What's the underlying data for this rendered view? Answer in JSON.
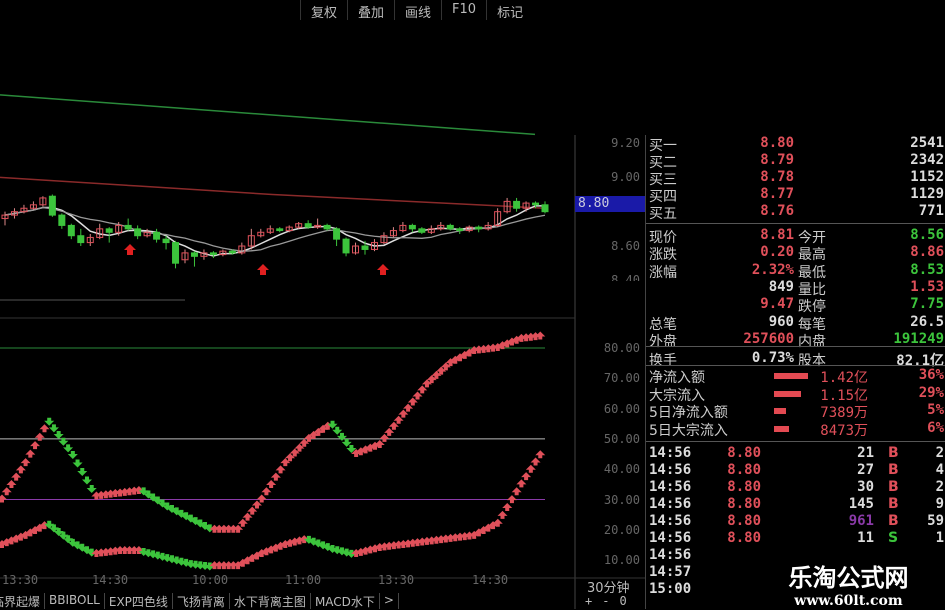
{
  "toolbar": {
    "items": [
      "复权",
      "叠加",
      "画线",
      "F10",
      "标记"
    ]
  },
  "price_axis": {
    "labels": [
      "9.20",
      "9.00",
      "8.60",
      "8.40"
    ],
    "current": "8.80"
  },
  "indicator_axis": {
    "labels": [
      "80.00",
      "70.00",
      "60.00",
      "50.00",
      "40.00",
      "30.00",
      "20.00",
      "10.00"
    ]
  },
  "time_axis": {
    "labels": [
      "13:30",
      "14:30",
      "10:00",
      "11:00",
      "13:30",
      "14:30"
    ],
    "period": "30分钟",
    "zoom_buttons": [
      "+",
      "-",
      "0"
    ]
  },
  "indicator_tabs": [
    "临界起爆",
    "BBIBOLL",
    "EXP四色线",
    "飞扬背离",
    "水下背离主图",
    "MACD水下",
    ">"
  ],
  "colors": {
    "up": "#e0505a",
    "down": "#3cc43c",
    "ma_white": "#dddddd",
    "ma_red": "#8a2a2a",
    "ma_green": "#2a8a3a",
    "highlight": "#1a1aa8"
  },
  "quote": {
    "bids": [
      {
        "label": "买一",
        "price": "8.80",
        "vol": "2541"
      },
      {
        "label": "买二",
        "price": "8.79",
        "vol": "2342"
      },
      {
        "label": "买三",
        "price": "8.78",
        "vol": "1152"
      },
      {
        "label": "买四",
        "price": "8.77",
        "vol": "1129"
      },
      {
        "label": "买五",
        "price": "8.76",
        "vol": "771"
      }
    ],
    "stats": [
      {
        "l1": "现价",
        "v1": "8.81",
        "c1": "red",
        "l2": "今开",
        "v2": "8.56",
        "c2": "grn"
      },
      {
        "l1": "涨跌",
        "v1": "0.20",
        "c1": "red",
        "l2": "最高",
        "v2": "8.86",
        "c2": "red"
      },
      {
        "l1": "涨幅",
        "v1": "2.32%",
        "c1": "red",
        "l2": "最低",
        "v2": "8.53",
        "c2": "grn"
      },
      {
        "l1": "",
        "v1": "849",
        "c1": "wht",
        "l2": "量比",
        "v2": "1.53",
        "c2": "red"
      },
      {
        "l1": "",
        "v1": "9.47",
        "c1": "red",
        "l2": "跌停",
        "v2": "7.75",
        "c2": "grn"
      },
      {
        "l1": "总笔",
        "v1": "960",
        "c1": "wht",
        "l2": "每笔",
        "v2": "26.5",
        "c2": "wht"
      },
      {
        "l1": "外盘",
        "v1": "257600",
        "c1": "red",
        "l2": "内盘",
        "v2": "191249",
        "c2": "grn"
      },
      {
        "l1": "换手",
        "v1": "0.73%",
        "c1": "wht",
        "l2": "股本",
        "v2": "82.1亿",
        "c2": "wht"
      }
    ],
    "flows": [
      {
        "label": "净流入额",
        "bar": 1.0,
        "amount": "1.42亿",
        "pct": "36%"
      },
      {
        "label": "大宗流入",
        "bar": 0.8,
        "amount": "1.15亿",
        "pct": "29%"
      },
      {
        "label": "5日净流入额",
        "bar": 0.35,
        "amount": "7389万",
        "pct": "5%"
      },
      {
        "label": "5日大宗流入",
        "bar": 0.45,
        "amount": "8473万",
        "pct": "6%"
      }
    ],
    "ticks": [
      {
        "time": "14:56",
        "price": "8.80",
        "vol": "21",
        "side": "B",
        "num": "2",
        "vc": "wht"
      },
      {
        "time": "14:56",
        "price": "8.80",
        "vol": "27",
        "side": "B",
        "num": "4",
        "vc": "wht"
      },
      {
        "time": "14:56",
        "price": "8.80",
        "vol": "30",
        "side": "B",
        "num": "2",
        "vc": "wht"
      },
      {
        "time": "14:56",
        "price": "8.80",
        "vol": "145",
        "side": "B",
        "num": "9",
        "vc": "wht"
      },
      {
        "time": "14:56",
        "price": "8.80",
        "vol": "961",
        "side": "B",
        "num": "59",
        "vc": "pur"
      },
      {
        "time": "14:56",
        "price": "8.80",
        "vol": "11",
        "side": "S",
        "num": "1",
        "vc": "wht"
      },
      {
        "time": "14:56",
        "price": "",
        "vol": "",
        "side": "",
        "num": "",
        "vc": "wht"
      },
      {
        "time": "14:57",
        "price": "",
        "vol": "",
        "side": "",
        "num": "",
        "vc": "wht"
      },
      {
        "time": "15:00",
        "price": "",
        "vol": "",
        "side": "",
        "num": "",
        "vc": "wht"
      }
    ]
  },
  "watermark": {
    "title": "乐淘公式网",
    "url": "www.60lt.com"
  },
  "chart_data": {
    "type": "candlestick",
    "candles": [
      [
        8.76,
        8.78,
        8.8,
        8.72
      ],
      [
        8.78,
        8.8,
        8.82,
        8.76
      ],
      [
        8.8,
        8.82,
        8.84,
        8.79
      ],
      [
        8.82,
        8.84,
        8.86,
        8.81
      ],
      [
        8.84,
        8.88,
        8.89,
        8.83
      ],
      [
        8.89,
        8.78,
        8.9,
        8.77
      ],
      [
        8.78,
        8.72,
        8.79,
        8.7
      ],
      [
        8.72,
        8.66,
        8.73,
        8.64
      ],
      [
        8.66,
        8.62,
        8.7,
        8.6
      ],
      [
        8.62,
        8.65,
        8.67,
        8.6
      ],
      [
        8.65,
        8.7,
        8.73,
        8.64
      ],
      [
        8.7,
        8.68,
        8.71,
        8.62
      ],
      [
        8.68,
        8.72,
        8.74,
        8.66
      ],
      [
        8.72,
        8.7,
        8.76,
        8.69
      ],
      [
        8.7,
        8.66,
        8.72,
        8.64
      ],
      [
        8.66,
        8.68,
        8.7,
        8.65
      ],
      [
        8.68,
        8.64,
        8.7,
        8.62
      ],
      [
        8.64,
        8.62,
        8.66,
        8.58
      ],
      [
        8.62,
        8.5,
        8.63,
        8.47
      ],
      [
        8.52,
        8.56,
        8.58,
        8.5
      ],
      [
        8.56,
        8.54,
        8.57,
        8.48
      ],
      [
        8.54,
        8.56,
        8.58,
        8.52
      ],
      [
        8.56,
        8.55,
        8.57,
        8.53
      ],
      [
        8.55,
        8.57,
        8.58,
        8.54
      ],
      [
        8.57,
        8.56,
        8.58,
        8.55
      ],
      [
        8.56,
        8.6,
        8.62,
        8.55
      ],
      [
        8.6,
        8.66,
        8.7,
        8.58
      ],
      [
        8.66,
        8.68,
        8.7,
        8.65
      ],
      [
        8.68,
        8.7,
        8.72,
        8.67
      ],
      [
        8.7,
        8.69,
        8.71,
        8.68
      ],
      [
        8.69,
        8.71,
        8.72,
        8.68
      ],
      [
        8.71,
        8.73,
        8.74,
        8.7
      ],
      [
        8.73,
        8.71,
        8.75,
        8.7
      ],
      [
        8.71,
        8.72,
        8.76,
        8.7
      ],
      [
        8.72,
        8.7,
        8.73,
        8.69
      ],
      [
        8.7,
        8.64,
        8.71,
        8.6
      ],
      [
        8.64,
        8.56,
        8.65,
        8.54
      ],
      [
        8.56,
        8.6,
        8.62,
        8.55
      ],
      [
        8.6,
        8.58,
        8.63,
        8.55
      ],
      [
        8.58,
        8.62,
        8.64,
        8.57
      ],
      [
        8.62,
        8.66,
        8.68,
        8.61
      ],
      [
        8.66,
        8.69,
        8.71,
        8.65
      ],
      [
        8.69,
        8.72,
        8.74,
        8.68
      ],
      [
        8.72,
        8.7,
        8.73,
        8.68
      ],
      [
        8.7,
        8.68,
        8.71,
        8.67
      ],
      [
        8.68,
        8.7,
        8.72,
        8.67
      ],
      [
        8.7,
        8.72,
        8.74,
        8.69
      ],
      [
        8.72,
        8.7,
        8.73,
        8.69
      ],
      [
        8.7,
        8.69,
        8.71,
        8.67
      ],
      [
        8.69,
        8.71,
        8.72,
        8.68
      ],
      [
        8.71,
        8.7,
        8.72,
        8.68
      ],
      [
        8.7,
        8.72,
        8.74,
        8.69
      ],
      [
        8.72,
        8.8,
        8.82,
        8.71
      ],
      [
        8.8,
        8.86,
        8.88,
        8.79
      ],
      [
        8.86,
        8.82,
        8.88,
        8.8
      ],
      [
        8.82,
        8.85,
        8.86,
        8.8
      ],
      [
        8.85,
        8.84,
        8.86,
        8.82
      ],
      [
        8.84,
        8.8,
        8.86,
        8.79
      ]
    ],
    "ma_long": [
      9.0,
      8.95,
      8.9,
      8.86,
      8.82
    ],
    "ma_top": [
      9.48,
      9.25
    ],
    "indicator": {
      "upper": [
        30,
        42,
        56,
        45,
        31,
        32,
        33,
        28,
        24,
        20,
        20,
        30,
        42,
        50,
        55,
        45,
        48,
        58,
        68,
        75,
        79,
        80,
        83,
        84
      ],
      "lower": [
        15,
        18,
        22,
        16,
        12,
        13,
        13,
        11,
        9,
        8,
        8,
        12,
        15,
        17,
        14,
        12,
        14,
        15,
        16,
        17,
        18,
        22,
        35,
        47
      ],
      "levels": [
        80,
        50,
        30
      ]
    }
  }
}
